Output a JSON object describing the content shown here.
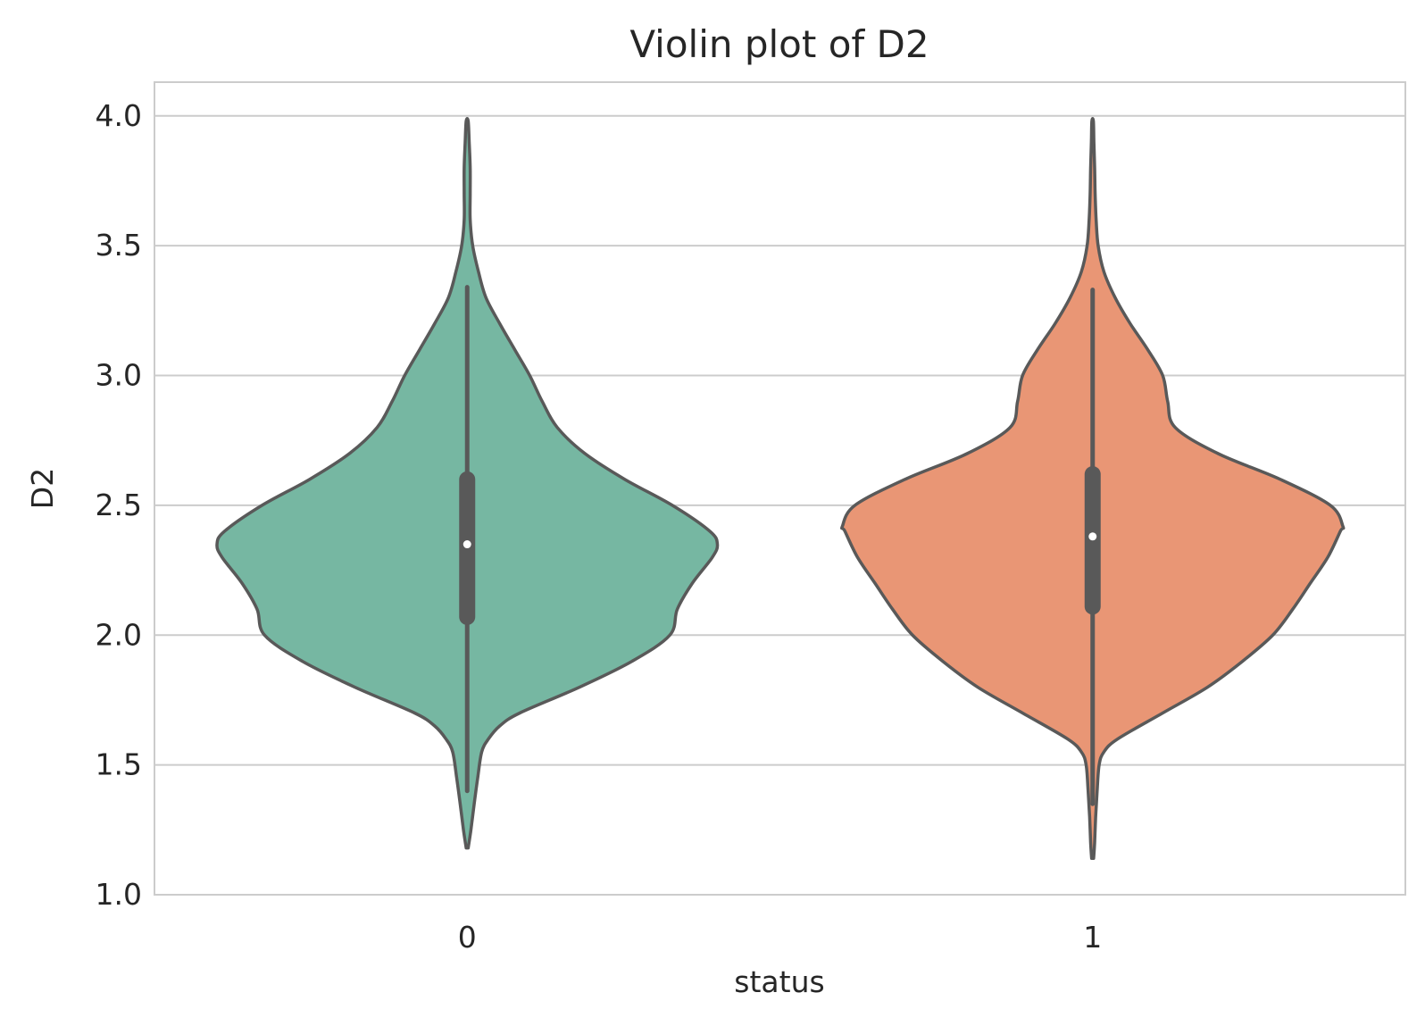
{
  "chart_data": {
    "type": "violin",
    "title": "Violin plot of D2",
    "xlabel": "status",
    "ylabel": "D2",
    "ylim": [
      1.0,
      4.13
    ],
    "yticks": [
      "1.0",
      "1.5",
      "2.0",
      "2.5",
      "3.0",
      "3.5",
      "4.0"
    ],
    "grid": "horizontal",
    "categories": [
      "0",
      "1"
    ],
    "colors": [
      "#76b7a2",
      "#e99675"
    ],
    "outline_color": "#595959",
    "series": [
      {
        "category": "0",
        "min": 1.4,
        "q1": 2.07,
        "median": 2.35,
        "q3": 2.6,
        "max": 3.34,
        "kde_min": 1.18,
        "kde_max": 3.98,
        "density": [
          [
            1.18,
            0.004
          ],
          [
            1.25,
            0.015
          ],
          [
            1.35,
            0.028
          ],
          [
            1.45,
            0.042
          ],
          [
            1.55,
            0.058
          ],
          [
            1.6,
            0.085
          ],
          [
            1.65,
            0.13
          ],
          [
            1.7,
            0.21
          ],
          [
            1.8,
            0.45
          ],
          [
            1.9,
            0.66
          ],
          [
            2.0,
            0.81
          ],
          [
            2.1,
            0.84
          ],
          [
            2.2,
            0.9
          ],
          [
            2.3,
            0.98
          ],
          [
            2.35,
            1.0
          ],
          [
            2.4,
            0.97
          ],
          [
            2.5,
            0.82
          ],
          [
            2.6,
            0.63
          ],
          [
            2.7,
            0.47
          ],
          [
            2.8,
            0.36
          ],
          [
            2.9,
            0.3
          ],
          [
            3.0,
            0.25
          ],
          [
            3.1,
            0.19
          ],
          [
            3.2,
            0.13
          ],
          [
            3.3,
            0.075
          ],
          [
            3.4,
            0.045
          ],
          [
            3.5,
            0.022
          ],
          [
            3.6,
            0.012
          ],
          [
            3.7,
            0.012
          ],
          [
            3.8,
            0.012
          ],
          [
            3.9,
            0.008
          ],
          [
            3.98,
            0.004
          ]
        ]
      },
      {
        "category": "1",
        "min": 1.35,
        "q1": 2.11,
        "median": 2.38,
        "q3": 2.62,
        "max": 3.33,
        "kde_min": 1.14,
        "kde_max": 3.98,
        "density": [
          [
            1.14,
            0.004
          ],
          [
            1.2,
            0.008
          ],
          [
            1.3,
            0.012
          ],
          [
            1.4,
            0.018
          ],
          [
            1.5,
            0.026
          ],
          [
            1.55,
            0.045
          ],
          [
            1.6,
            0.1
          ],
          [
            1.7,
            0.28
          ],
          [
            1.8,
            0.46
          ],
          [
            1.9,
            0.6
          ],
          [
            2.0,
            0.72
          ],
          [
            2.1,
            0.8
          ],
          [
            2.2,
            0.87
          ],
          [
            2.3,
            0.94
          ],
          [
            2.4,
            0.99
          ],
          [
            2.42,
            1.0
          ],
          [
            2.5,
            0.95
          ],
          [
            2.6,
            0.75
          ],
          [
            2.7,
            0.5
          ],
          [
            2.8,
            0.33
          ],
          [
            2.9,
            0.3
          ],
          [
            3.0,
            0.28
          ],
          [
            3.1,
            0.22
          ],
          [
            3.2,
            0.15
          ],
          [
            3.3,
            0.09
          ],
          [
            3.4,
            0.045
          ],
          [
            3.5,
            0.022
          ],
          [
            3.6,
            0.014
          ],
          [
            3.7,
            0.01
          ],
          [
            3.8,
            0.008
          ],
          [
            3.9,
            0.005
          ],
          [
            3.98,
            0.003
          ]
        ]
      }
    ]
  }
}
